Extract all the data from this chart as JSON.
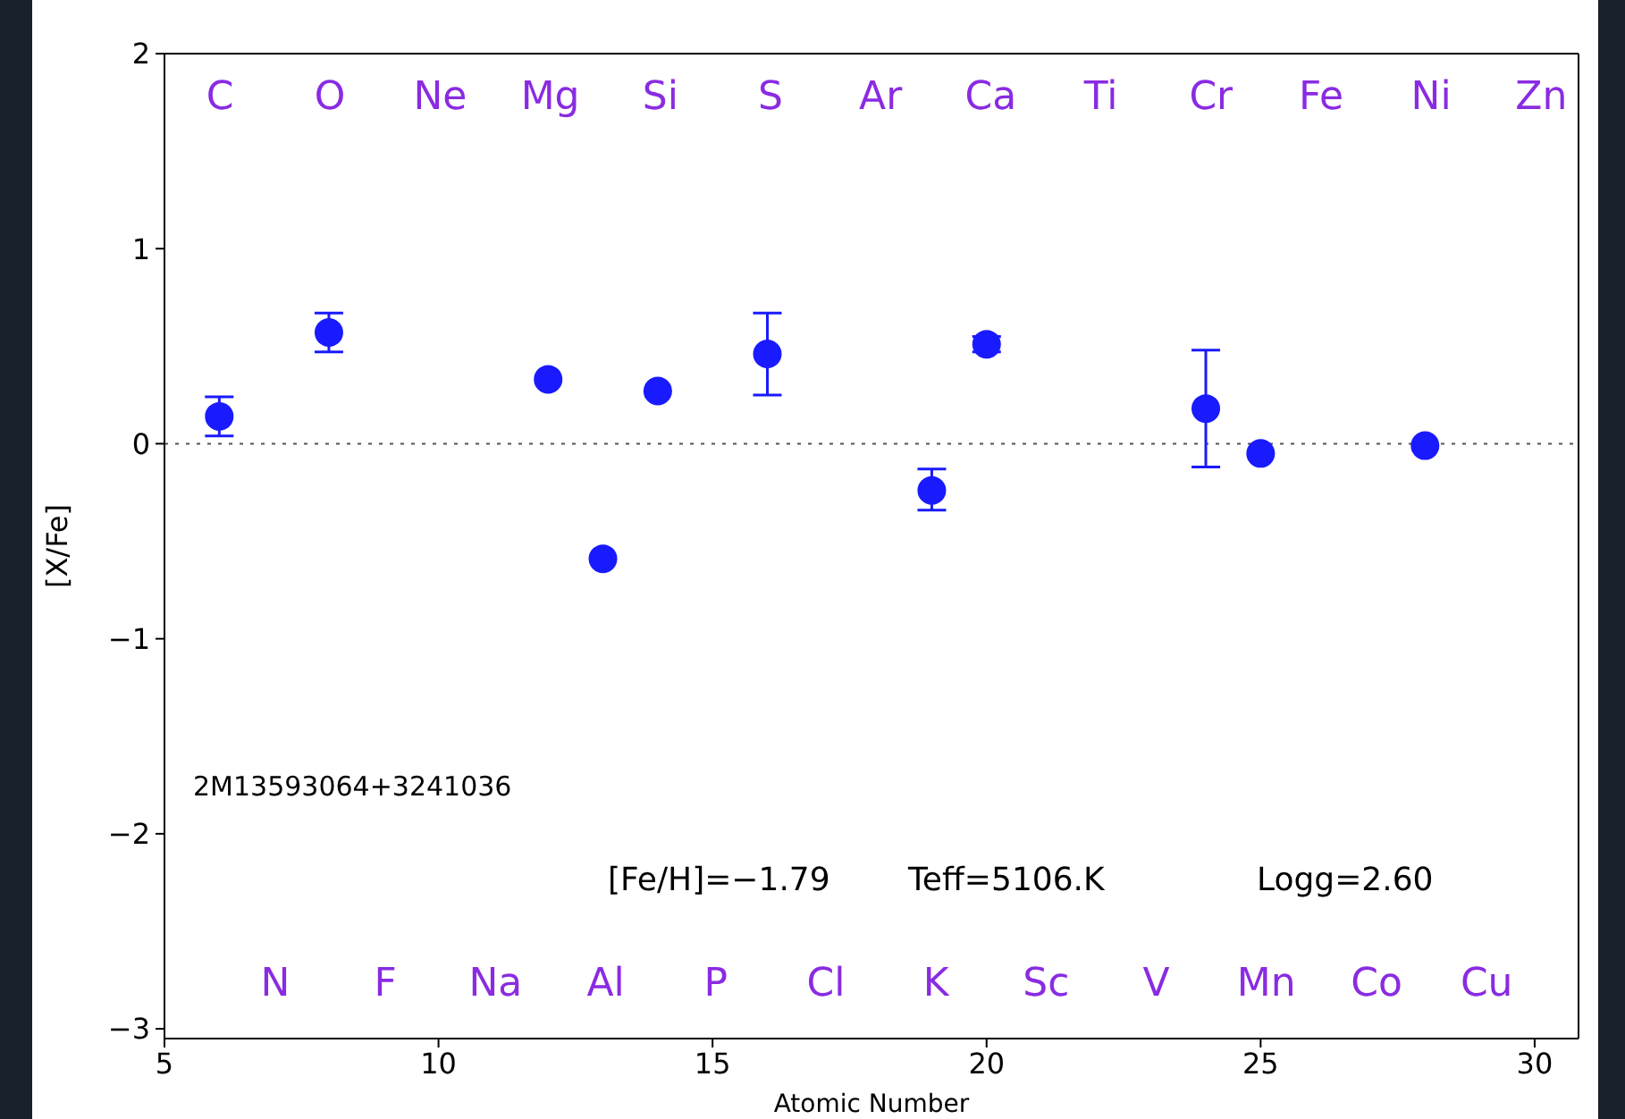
{
  "chart_data": {
    "type": "scatter",
    "xlabel": "Atomic Number",
    "ylabel": "[X/Fe]",
    "x": [
      6,
      8,
      12,
      13,
      14,
      16,
      19,
      20,
      24,
      25,
      28
    ],
    "series": [
      {
        "color": "#1a1aff",
        "values": [
          0.14,
          0.57,
          0.33,
          -0.59,
          0.27,
          0.46,
          -0.24,
          0.51,
          0.18,
          -0.05,
          -0.01
        ],
        "errors": [
          [
            0.04,
            0.24
          ],
          [
            0.47,
            0.67
          ],
          null,
          null,
          null,
          [
            0.25,
            0.67
          ],
          [
            -0.34,
            -0.13
          ],
          [
            0.47,
            0.55
          ],
          [
            -0.12,
            0.48
          ],
          null,
          null
        ]
      }
    ],
    "marker": "circle",
    "xlim": [
      5,
      30.8
    ],
    "xticks": [
      5,
      10,
      15,
      20,
      25,
      30
    ],
    "ylim": [
      -3.05,
      2
    ],
    "yticks": [
      {
        "value": -3,
        "label": "−3"
      },
      {
        "value": -2,
        "label": "−2"
      },
      {
        "value": -1,
        "label": "−1"
      },
      0,
      1,
      2
    ],
    "grid": false,
    "legend": false,
    "ref_lines": [
      {
        "axis": "y",
        "value": 0,
        "color": "#555555",
        "line_style": "dotted"
      }
    ],
    "annotations": [
      "C",
      "O",
      "Ne",
      "Mg",
      "Si",
      "S",
      "Ar",
      "Ca",
      "Ti",
      "Cr",
      "Fe",
      "Ni",
      "Zn",
      "N",
      "F",
      "Na",
      "Al",
      "P",
      "Cl",
      "K",
      "Sc",
      "V",
      "Mn",
      "Co",
      "Cu",
      "2M13593064+3241036",
      "[Fe/H]=−1.79",
      "Teff=5106.K",
      "Logg=2.60"
    ]
  }
}
